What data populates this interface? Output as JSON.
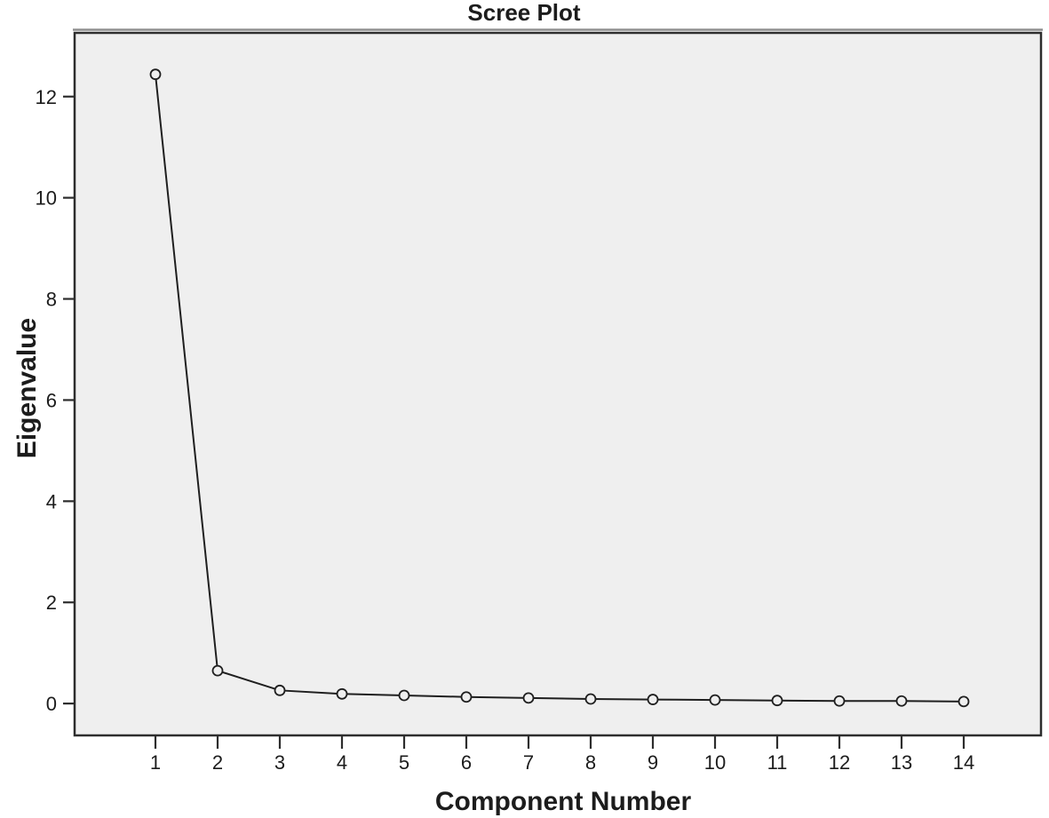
{
  "chart_data": {
    "type": "line",
    "title": "Scree Plot",
    "xlabel": "Component Number",
    "ylabel": "Eigenvalue",
    "x": [
      1,
      2,
      3,
      4,
      5,
      6,
      7,
      8,
      9,
      10,
      11,
      12,
      13,
      14
    ],
    "series": [
      {
        "name": "Eigenvalue",
        "values": [
          12.44,
          0.65,
          0.26,
          0.19,
          0.16,
          0.13,
          0.11,
          0.09,
          0.08,
          0.07,
          0.06,
          0.05,
          0.05,
          0.04
        ]
      }
    ],
    "xticks": [
      "1",
      "2",
      "3",
      "4",
      "5",
      "6",
      "7",
      "8",
      "9",
      "10",
      "11",
      "12",
      "13",
      "14"
    ],
    "yticks": [
      "0",
      "2",
      "4",
      "6",
      "8",
      "10",
      "12"
    ],
    "ytick_values": [
      0,
      2,
      4,
      6,
      8,
      10,
      12
    ],
    "ylim": [
      -0.63,
      13.26
    ],
    "grid": false,
    "legend": "none",
    "marker": "open-circle",
    "colors": {
      "page_background": "#ffffff",
      "plot_background": "#efefef",
      "frame": "#2d2d2d",
      "frame_top_shadow": "#8f8f8f",
      "line": "#1f1f1f",
      "marker_stroke": "#1f1f1f",
      "text": "#1c1c1c"
    }
  }
}
